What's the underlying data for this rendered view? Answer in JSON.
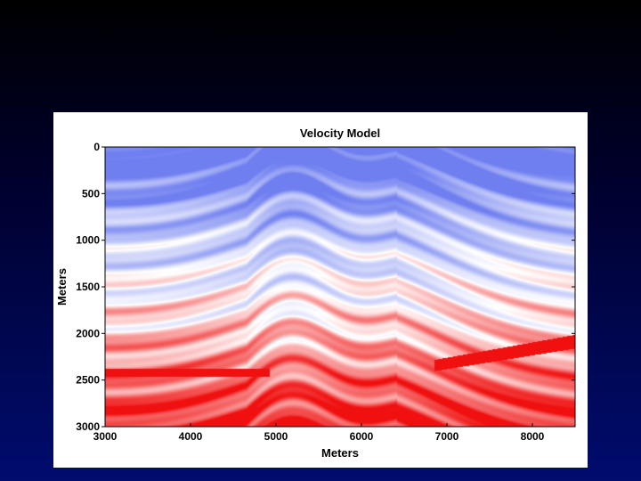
{
  "colors": {
    "slide_background_top": "#000000",
    "slide_background_bottom": "#000c6e",
    "figure_background": "#ffffff",
    "low_velocity": "#6f7ff0",
    "mid_velocity": "#ffffff",
    "high_velocity": "#f01010"
  },
  "chart_data": {
    "type": "heatmap",
    "title": "Velocity Model",
    "xlabel": "Meters",
    "ylabel": "Meters",
    "xlim": [
      3000,
      8500
    ],
    "ylim": [
      3000,
      0
    ],
    "x_ticks": [
      3000,
      4000,
      5000,
      6000,
      7000,
      8000
    ],
    "y_ticks": [
      0,
      500,
      1000,
      1500,
      2000,
      2500,
      3000
    ],
    "colormap": "blue-white-red",
    "grid": false,
    "legend": "none"
  }
}
